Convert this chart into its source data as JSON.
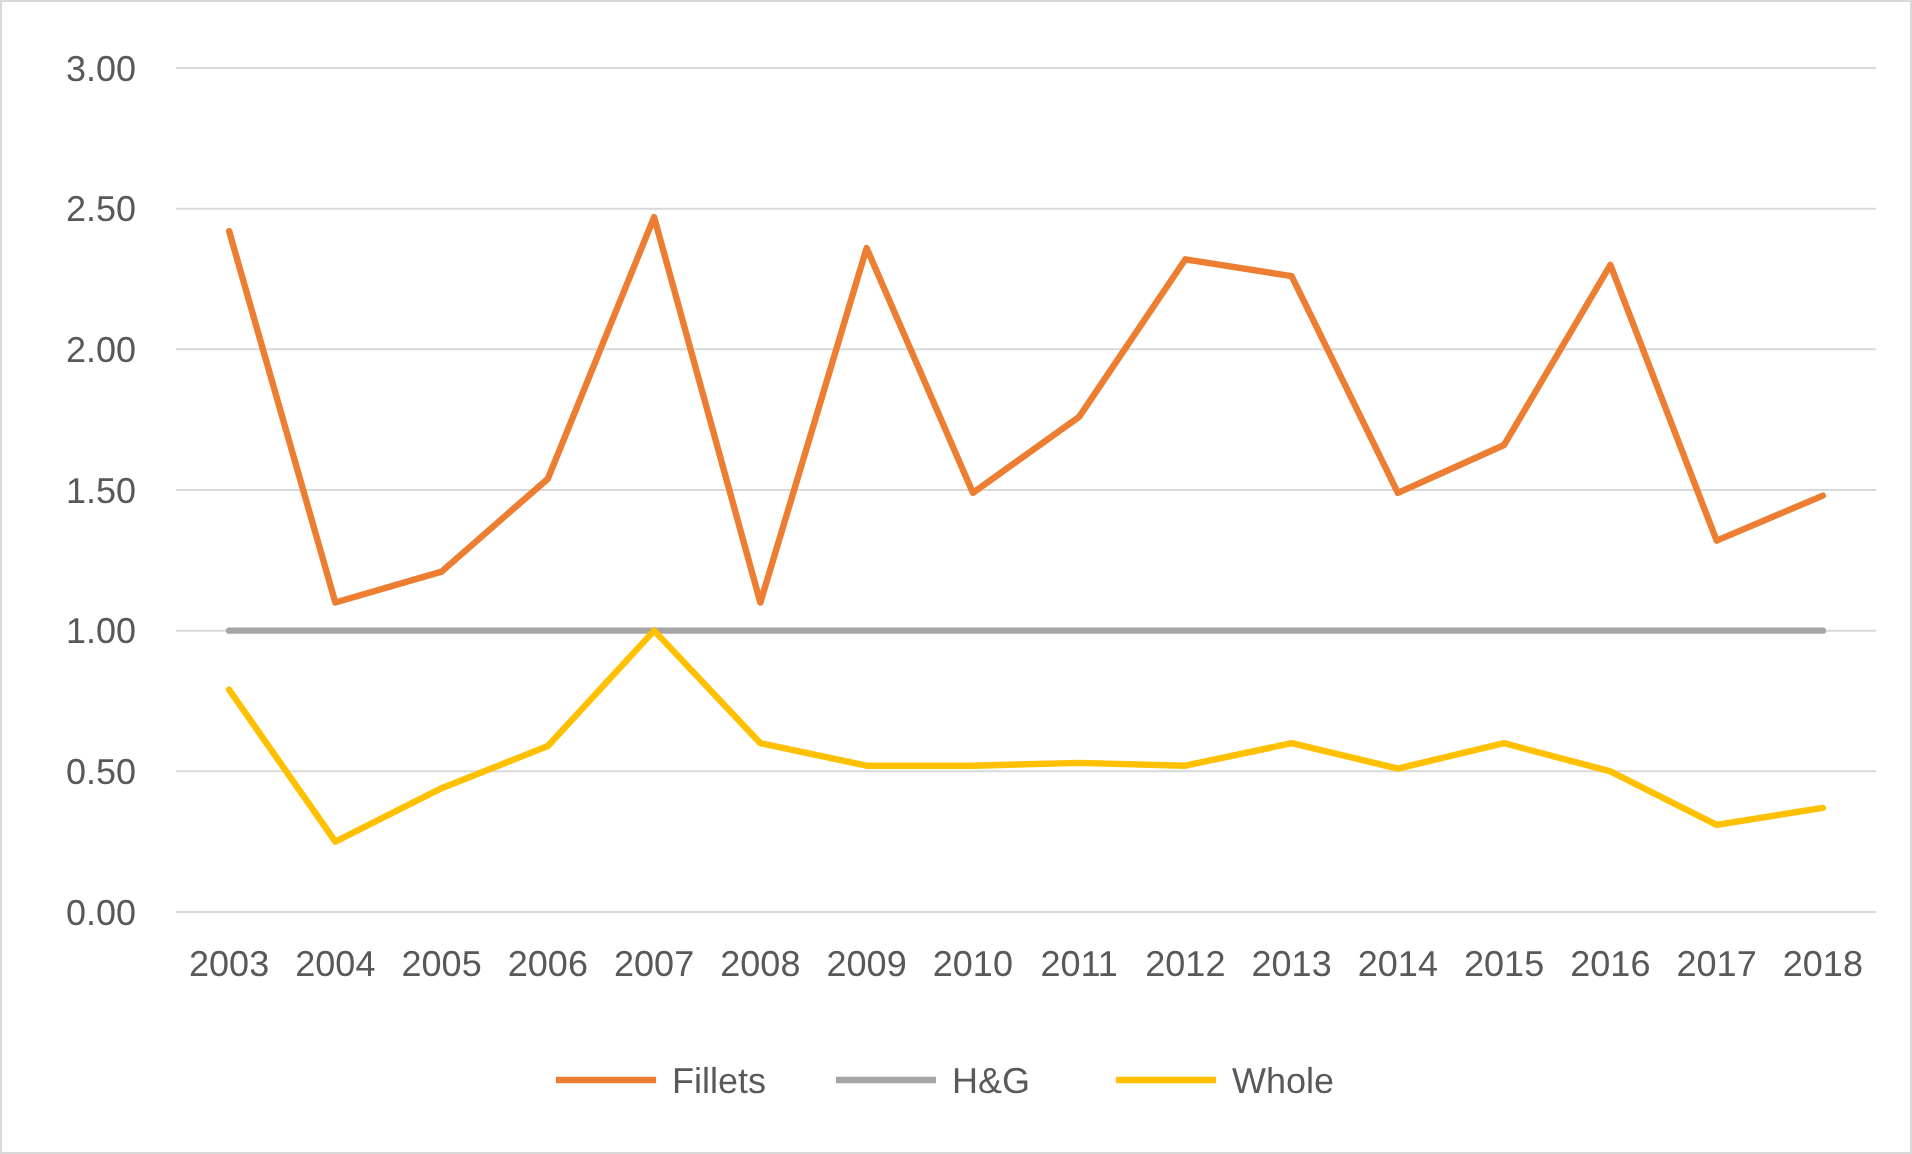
{
  "chart_data": {
    "type": "line",
    "categories": [
      "2003",
      "2004",
      "2005",
      "2006",
      "2007",
      "2008",
      "2009",
      "2010",
      "2011",
      "2012",
      "2013",
      "2014",
      "2015",
      "2016",
      "2017",
      "2018"
    ],
    "series": [
      {
        "name": "Fillets",
        "color": "#ed7d31",
        "values": [
          2.42,
          1.1,
          1.21,
          1.54,
          2.47,
          1.1,
          2.36,
          1.49,
          1.76,
          2.32,
          2.26,
          1.49,
          1.66,
          2.3,
          1.32,
          1.48
        ]
      },
      {
        "name": "H&G",
        "color": "#a5a5a5",
        "values": [
          1.0,
          1.0,
          1.0,
          1.0,
          1.0,
          1.0,
          1.0,
          1.0,
          1.0,
          1.0,
          1.0,
          1.0,
          1.0,
          1.0,
          1.0,
          1.0
        ]
      },
      {
        "name": "Whole",
        "color": "#ffc000",
        "values": [
          0.79,
          0.25,
          0.44,
          0.59,
          1.0,
          0.6,
          0.52,
          0.52,
          0.53,
          0.52,
          0.6,
          0.51,
          0.6,
          0.5,
          0.31,
          0.37
        ]
      }
    ],
    "ylim": [
      0,
      3
    ],
    "yticks": [
      {
        "value": 0,
        "label": "0.00"
      },
      {
        "value": 0.5,
        "label": "0.50"
      },
      {
        "value": 1,
        "label": "1.00"
      },
      {
        "value": 1.5,
        "label": "1.50"
      },
      {
        "value": 2,
        "label": "2.00"
      },
      {
        "value": 2.5,
        "label": "2.50"
      },
      {
        "value": 3,
        "label": "3.00"
      }
    ],
    "grid": "y",
    "legend": "bottom",
    "marker": "none",
    "line_style": "solid"
  }
}
